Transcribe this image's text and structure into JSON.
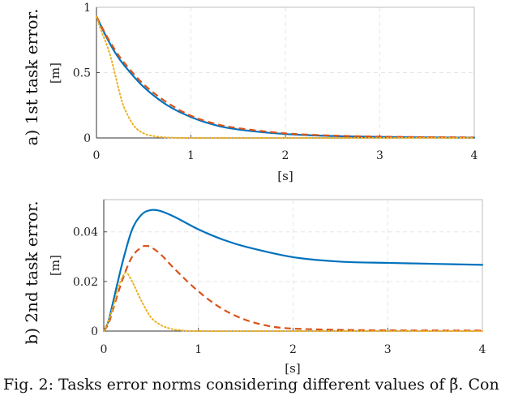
{
  "caption": "Fig. 2: Tasks error norms considering different values of β̃. Con",
  "colors": {
    "blue": "#0072BD",
    "orange": "#D95319",
    "yellow": "#EDB120",
    "grid": "#e6e6e6",
    "axis": "#bdbdbd"
  },
  "chart_data": [
    {
      "type": "line",
      "title": "a) 1st task error.",
      "xlabel": "[s]",
      "ylabel": "[m]",
      "xlim": [
        0,
        4
      ],
      "ylim": [
        0,
        1
      ],
      "xticks": [
        "0",
        "1",
        "2",
        "3",
        "4"
      ],
      "yticks": [
        "0",
        "0.5",
        "1"
      ],
      "grid": true,
      "series": [
        {
          "color": "#0072BD",
          "style": "solid",
          "x": [
            0,
            0.1,
            0.2,
            0.3,
            0.5,
            0.75,
            1.0,
            1.25,
            1.5,
            2.0,
            2.5,
            3.0,
            3.5,
            4.0
          ],
          "y": [
            0.93,
            0.78,
            0.65,
            0.55,
            0.39,
            0.25,
            0.16,
            0.1,
            0.065,
            0.03,
            0.015,
            0.008,
            0.004,
            0.002
          ]
        },
        {
          "color": "#D95319",
          "style": "dashed",
          "x": [
            0,
            0.1,
            0.2,
            0.3,
            0.5,
            0.75,
            1.0,
            1.25,
            1.5,
            2.0,
            2.5,
            3.0,
            3.5,
            4.0
          ],
          "y": [
            0.93,
            0.79,
            0.67,
            0.57,
            0.41,
            0.27,
            0.17,
            0.11,
            0.075,
            0.035,
            0.018,
            0.01,
            0.006,
            0.004
          ]
        },
        {
          "color": "#EDB120",
          "style": "dotted",
          "x": [
            0,
            0.05,
            0.1,
            0.15,
            0.2,
            0.25,
            0.3,
            0.4,
            0.5,
            0.6,
            0.7,
            0.8,
            1.0,
            1.5,
            2.0,
            4.0
          ],
          "y": [
            0.93,
            0.82,
            0.73,
            0.62,
            0.48,
            0.33,
            0.22,
            0.09,
            0.035,
            0.015,
            0.006,
            0.002,
            0.0,
            0.0,
            0.0,
            0.0
          ]
        }
      ]
    },
    {
      "type": "line",
      "title": "b) 2nd task error.",
      "xlabel": "[s]",
      "ylabel": "[m]",
      "xlim": [
        0,
        4
      ],
      "ylim": [
        0,
        0.053
      ],
      "xticks": [
        "0",
        "1",
        "2",
        "3",
        "4"
      ],
      "yticks": [
        "0",
        "0.02",
        "0.04"
      ],
      "yticks_values": [
        0,
        0.02,
        0.04
      ],
      "grid": true,
      "series": [
        {
          "color": "#0072BD",
          "style": "solid",
          "x": [
            0,
            0.05,
            0.1,
            0.2,
            0.3,
            0.4,
            0.5,
            0.6,
            0.75,
            1.0,
            1.25,
            1.5,
            2.0,
            2.5,
            3.0,
            3.5,
            4.0
          ],
          "y": [
            0,
            0.004,
            0.012,
            0.028,
            0.041,
            0.047,
            0.0488,
            0.0484,
            0.046,
            0.041,
            0.037,
            0.034,
            0.0298,
            0.028,
            0.0275,
            0.0271,
            0.0267
          ]
        },
        {
          "color": "#D95319",
          "style": "dashed",
          "x": [
            0,
            0.05,
            0.1,
            0.2,
            0.3,
            0.4,
            0.45,
            0.5,
            0.6,
            0.75,
            1.0,
            1.25,
            1.5,
            1.75,
            2.0,
            2.5,
            3.0,
            4.0
          ],
          "y": [
            0,
            0.003,
            0.009,
            0.021,
            0.03,
            0.0338,
            0.0343,
            0.0338,
            0.031,
            0.025,
            0.016,
            0.009,
            0.0045,
            0.002,
            0.001,
            0.0005,
            0.0003,
            0.0002
          ]
        },
        {
          "color": "#EDB120",
          "style": "dotted",
          "x": [
            0,
            0.05,
            0.1,
            0.15,
            0.2,
            0.24,
            0.3,
            0.4,
            0.5,
            0.6,
            0.7,
            0.8,
            1.0,
            2.0,
            4.0
          ],
          "y": [
            0,
            0.004,
            0.01,
            0.017,
            0.022,
            0.0235,
            0.02,
            0.012,
            0.0055,
            0.0025,
            0.001,
            0.0004,
            0.0,
            0.0,
            0.0
          ]
        }
      ]
    }
  ]
}
